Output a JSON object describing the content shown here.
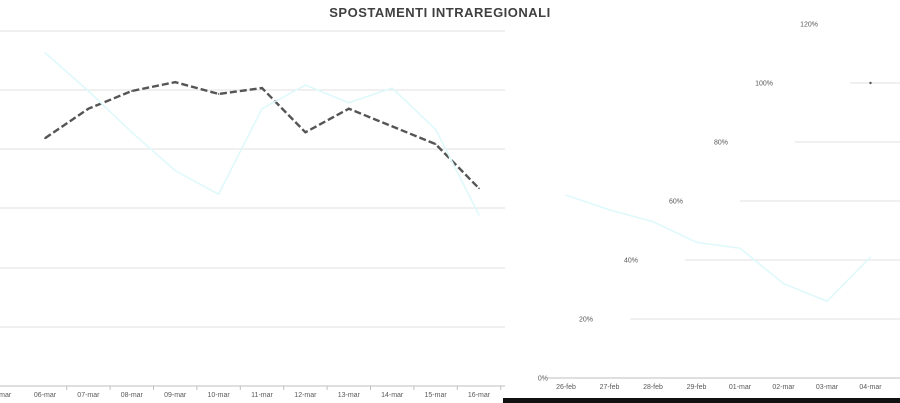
{
  "chart_data": [
    {
      "type": "line",
      "title": "SPOSTAMENTI INTRAREGIONALI",
      "xlabel": "",
      "ylabel": "",
      "categories": [
        "06-mar",
        "07-mar",
        "08-mar",
        "09-mar",
        "10-mar",
        "11-mar",
        "12-mar",
        "13-mar",
        "14-mar",
        "15-mar",
        "16-mar"
      ],
      "series": [
        {
          "name": "",
          "color": "#555555",
          "style": "dashed",
          "values": [
            84,
            94,
            100,
            103,
            99,
            101,
            86,
            94,
            88,
            82,
            67
          ]
        },
        {
          "name": "",
          "color": "#dff9fb",
          "style": "solid",
          "values": [
            113,
            100,
            86,
            73,
            65,
            94,
            102,
            96,
            101,
            87,
            58
          ]
        }
      ],
      "grid": true
    },
    {
      "type": "line",
      "xlabel": "",
      "ylabel": "",
      "categories": [
        "26-feb",
        "27-feb",
        "28-feb",
        "29-feb",
        "01-mar",
        "02-mar",
        "03-mar",
        "04-mar"
      ],
      "y_ticks": [
        "0%",
        "20%",
        "40%",
        "60%",
        "80%",
        "100%",
        "120%"
      ],
      "ylim": [
        0,
        120
      ],
      "series": [
        {
          "name": "",
          "color": "#dff9fb",
          "style": "solid",
          "values": [
            62,
            57,
            53,
            46,
            44,
            32,
            26,
            41
          ]
        },
        {
          "name": "",
          "color": "#555555",
          "style": "dashed",
          "values": [
            null,
            null,
            null,
            null,
            null,
            null,
            null,
            100
          ]
        }
      ],
      "grid": true
    }
  ]
}
